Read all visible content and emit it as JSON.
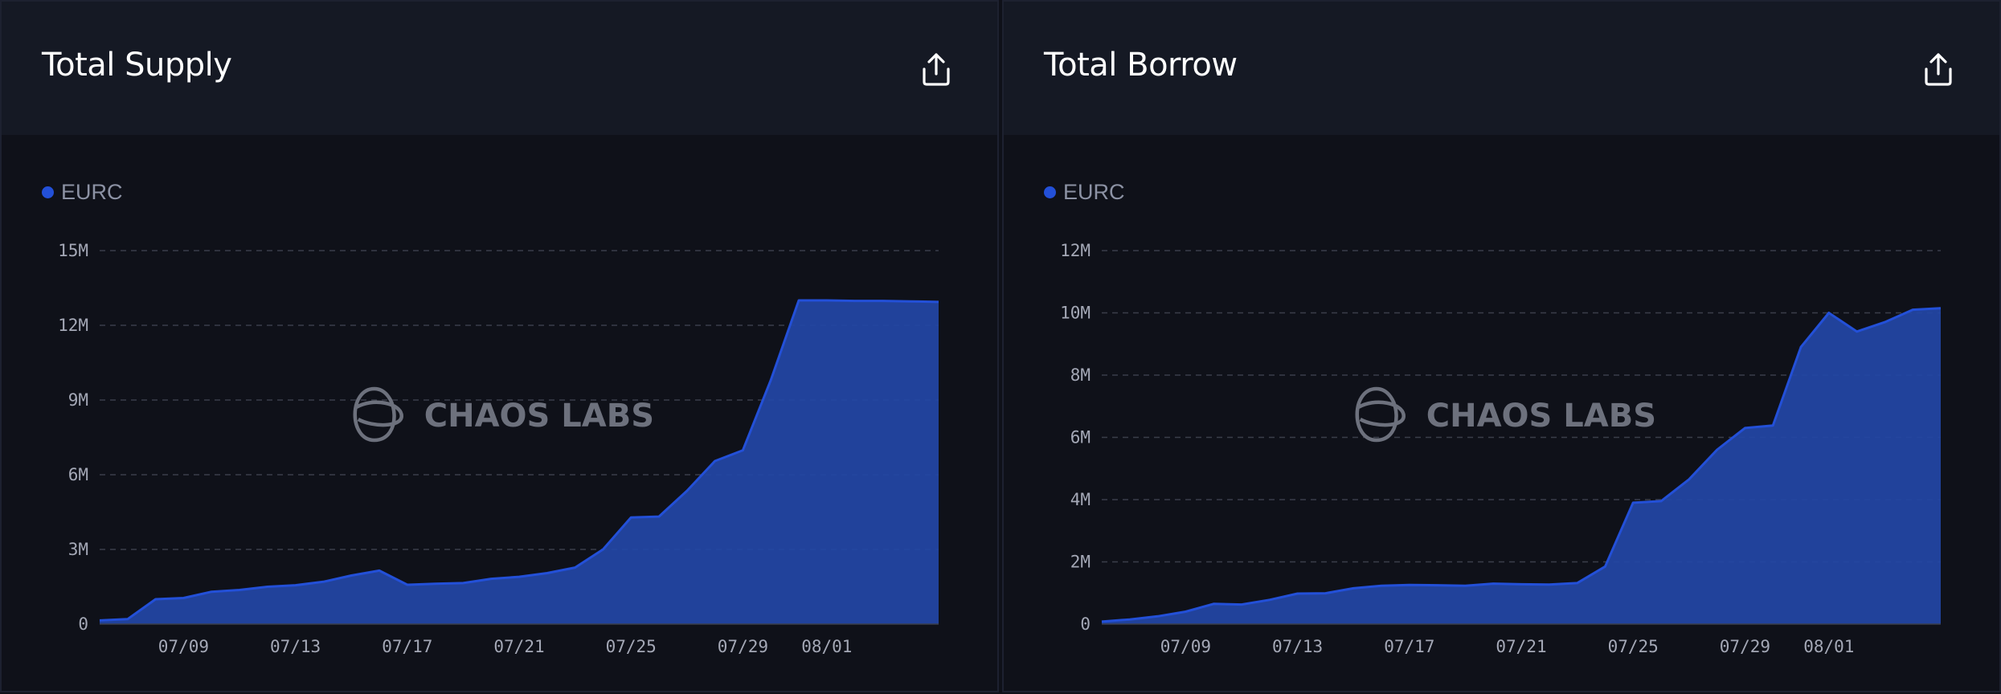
{
  "colors": {
    "series": "#2350d8",
    "area_fill": "#2347a6",
    "grid": "#3a3e4a",
    "watermark": "#6d717d"
  },
  "share_icon": "share-upload-icon",
  "watermark_text": "CHAOS LABS",
  "chart_data": [
    {
      "type": "area",
      "title": "Total Supply",
      "legend": [
        "EURC"
      ],
      "grid": true,
      "legend_position": "top-left",
      "ylim": [
        0,
        15000000
      ],
      "y_ticks": [
        {
          "value": 0,
          "label": "0"
        },
        {
          "value": 3000000,
          "label": "3M"
        },
        {
          "value": 6000000,
          "label": "6M"
        },
        {
          "value": 9000000,
          "label": "9M"
        },
        {
          "value": 12000000,
          "label": "12M"
        },
        {
          "value": 15000000,
          "label": "15M"
        }
      ],
      "x_ticks": [
        "07/09",
        "07/13",
        "07/17",
        "07/21",
        "07/25",
        "07/29",
        "08/01"
      ],
      "x": [
        "07/06",
        "07/07",
        "07/08",
        "07/09",
        "07/10",
        "07/11",
        "07/12",
        "07/13",
        "07/14",
        "07/15",
        "07/16",
        "07/17",
        "07/18",
        "07/19",
        "07/20",
        "07/21",
        "07/22",
        "07/23",
        "07/24",
        "07/25",
        "07/26",
        "07/27",
        "07/28",
        "07/29",
        "07/30",
        "07/31",
        "08/01",
        "08/02",
        "08/03",
        "08/04",
        "08/05"
      ],
      "series": [
        {
          "name": "EURC",
          "values": [
            150000,
            200000,
            1000000,
            1050000,
            1300000,
            1370000,
            1500000,
            1560000,
            1700000,
            1950000,
            2150000,
            1580000,
            1620000,
            1650000,
            1820000,
            1900000,
            2050000,
            2270000,
            3000000,
            4280000,
            4320000,
            5350000,
            6550000,
            6980000,
            9800000,
            13000000,
            13000000,
            12980000,
            12980000,
            12960000,
            12940000
          ]
        }
      ]
    },
    {
      "type": "area",
      "title": "Total Borrow",
      "legend": [
        "EURC"
      ],
      "grid": true,
      "legend_position": "top-left",
      "ylim": [
        0,
        12000000
      ],
      "y_ticks": [
        {
          "value": 0,
          "label": "0"
        },
        {
          "value": 2000000,
          "label": "2M"
        },
        {
          "value": 4000000,
          "label": "4M"
        },
        {
          "value": 6000000,
          "label": "6M"
        },
        {
          "value": 8000000,
          "label": "8M"
        },
        {
          "value": 10000000,
          "label": "10M"
        },
        {
          "value": 12000000,
          "label": "12M"
        }
      ],
      "x_ticks": [
        "07/09",
        "07/13",
        "07/17",
        "07/21",
        "07/25",
        "07/29",
        "08/01"
      ],
      "x": [
        "07/06",
        "07/07",
        "07/08",
        "07/09",
        "07/10",
        "07/11",
        "07/12",
        "07/13",
        "07/14",
        "07/15",
        "07/16",
        "07/17",
        "07/18",
        "07/19",
        "07/20",
        "07/21",
        "07/22",
        "07/23",
        "07/24",
        "07/25",
        "07/26",
        "07/27",
        "07/28",
        "07/29",
        "07/30",
        "07/31",
        "08/01",
        "08/02",
        "08/03",
        "08/04",
        "08/05"
      ],
      "series": [
        {
          "name": "EURC",
          "values": [
            80000,
            150000,
            250000,
            400000,
            650000,
            630000,
            780000,
            980000,
            990000,
            1150000,
            1230000,
            1260000,
            1250000,
            1230000,
            1300000,
            1280000,
            1270000,
            1320000,
            1850000,
            3900000,
            3950000,
            4650000,
            5600000,
            6300000,
            6380000,
            8900000,
            10000000,
            9400000,
            9700000,
            10100000,
            10150000
          ]
        }
      ]
    }
  ]
}
